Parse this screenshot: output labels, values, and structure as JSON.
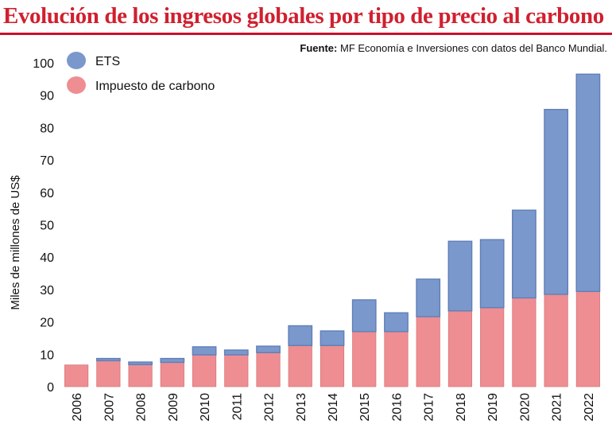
{
  "title": "Evolución de los ingresos globales por tipo de precio al carbono",
  "source": {
    "label": "Fuente:",
    "text": "MF Economía e Inversiones con datos del Banco Mundial."
  },
  "colors": {
    "title": "#d0202f",
    "rule": "#c8102e",
    "ets": "#7b98cd",
    "ets_edge": "#5f7fb8",
    "tax": "#ee8e92",
    "tax_edge": "#d9767b"
  },
  "chart_data": {
    "type": "bar",
    "stacked": true,
    "ylabel": "Miles de millones de US$",
    "xlabel": "",
    "ylim": [
      0,
      100
    ],
    "yticks": [
      0,
      10,
      20,
      30,
      40,
      50,
      60,
      70,
      80,
      90,
      100
    ],
    "grid": false,
    "legend_position": "top-left",
    "categories": [
      "2006",
      "2007",
      "2008",
      "2009",
      "2010",
      "2011",
      "2012",
      "2013",
      "2014",
      "2015",
      "2016",
      "2017",
      "2018",
      "2019",
      "2020",
      "2021",
      "2022"
    ],
    "series": [
      {
        "name": "Impuesto de carbono",
        "values": [
          6.7,
          8.0,
          6.8,
          7.5,
          9.8,
          9.8,
          10.5,
          12.7,
          12.7,
          17.0,
          17.0,
          21.6,
          23.4,
          24.4,
          27.4,
          28.5,
          29.4
        ]
      },
      {
        "name": "ETS",
        "values": [
          0.0,
          0.7,
          0.8,
          1.2,
          2.5,
          1.5,
          2.0,
          6.1,
          4.5,
          9.8,
          5.8,
          11.6,
          21.5,
          21.0,
          27.1,
          57.1,
          67.1
        ]
      }
    ]
  }
}
